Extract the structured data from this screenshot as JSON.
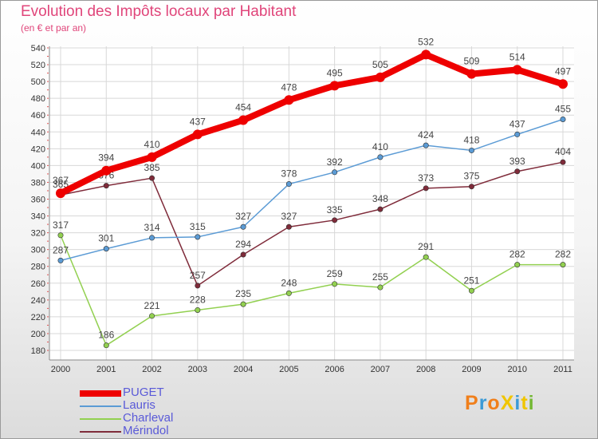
{
  "title": "Evolution des Impôts locaux par Habitant",
  "subtitle": "(en € et par an)",
  "logo": {
    "text": "ProXiti",
    "colors": [
      "#f07f1b",
      "#3b9ad6",
      "#f07f1b",
      "#f0c500",
      "#3b9ad6",
      "#f0c500",
      "#73b833"
    ]
  },
  "chart_data": {
    "type": "line",
    "x": [
      2000,
      2001,
      2002,
      2003,
      2004,
      2005,
      2006,
      2007,
      2008,
      2009,
      2010,
      2011
    ],
    "ylim": [
      180,
      540
    ],
    "yticks": [
      180,
      200,
      220,
      240,
      260,
      280,
      300,
      320,
      340,
      360,
      380,
      400,
      420,
      440,
      460,
      480,
      500,
      520,
      540
    ],
    "grid": true,
    "legend_position": "bottom-left",
    "series": [
      {
        "name": "PUGET",
        "color": "#ee0000",
        "values": [
          367,
          394,
          410,
          437,
          454,
          478,
          495,
          505,
          532,
          509,
          514,
          497
        ]
      },
      {
        "name": "Lauris",
        "color": "#5b9bd5",
        "values": [
          287,
          301,
          314,
          315,
          327,
          378,
          392,
          410,
          424,
          418,
          437,
          455
        ]
      },
      {
        "name": "Charleval",
        "color": "#92d050",
        "values": [
          317,
          186,
          221,
          228,
          235,
          248,
          259,
          255,
          291,
          251,
          282,
          282
        ]
      },
      {
        "name": "Mérindol",
        "color": "#7f2b3a",
        "values": [
          365,
          376,
          385,
          257,
          294,
          327,
          335,
          348,
          373,
          375,
          393,
          404
        ]
      }
    ]
  }
}
